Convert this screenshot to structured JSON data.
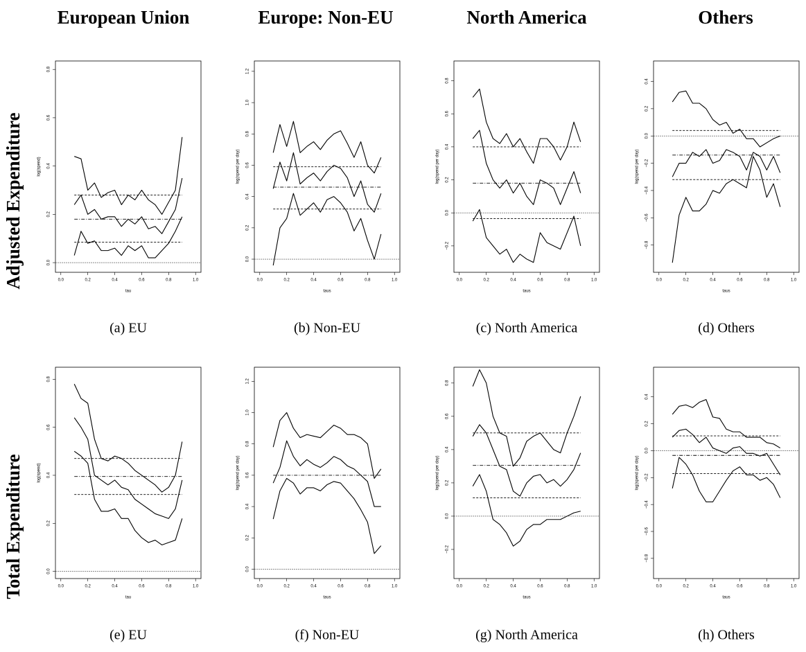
{
  "column_titles": [
    "European Union",
    "Europe: Non-EU",
    "North America",
    "Others"
  ],
  "row_titles": [
    "Adjusted Expenditure",
    "Total Expenditure"
  ],
  "chart_data": [
    {
      "type": "line",
      "caption": "(a) EU",
      "xlabel": "tau",
      "ylabel": "log(spend)",
      "x": [
        0.1,
        0.15,
        0.2,
        0.25,
        0.3,
        0.35,
        0.4,
        0.45,
        0.5,
        0.55,
        0.6,
        0.65,
        0.7,
        0.75,
        0.8,
        0.85,
        0.9
      ],
      "xlim": [
        -0.04,
        1.04
      ],
      "xticks": [
        {
          "value": 0,
          "label": "0.0"
        },
        0.2,
        0.4,
        0.6,
        0.8,
        {
          "value": 1,
          "label": "1.0"
        }
      ],
      "ylim": [
        -0.04,
        0.835
      ],
      "yticks": [
        {
          "value": 0,
          "label": "0.0"
        },
        0.2,
        0.4,
        0.6,
        0.8
      ],
      "zero_line": true,
      "series": [
        {
          "color": "#000",
          "values": [
            0.44,
            0.43,
            0.3,
            0.33,
            0.27,
            0.29,
            0.3,
            0.24,
            0.28,
            0.26,
            0.3,
            0.26,
            0.24,
            0.2,
            0.25,
            0.3,
            0.52
          ]
        },
        {
          "color": "#000",
          "values": [
            0.24,
            0.28,
            0.2,
            0.22,
            0.18,
            0.19,
            0.19,
            0.15,
            0.18,
            0.16,
            0.19,
            0.14,
            0.15,
            0.12,
            0.17,
            0.22,
            0.35
          ]
        },
        {
          "color": "#000",
          "values": [
            0.03,
            0.13,
            0.08,
            0.09,
            0.05,
            0.05,
            0.06,
            0.03,
            0.07,
            0.05,
            0.07,
            0.02,
            0.02,
            0.05,
            0.08,
            0.13,
            0.19
          ]
        }
      ],
      "hlines": [
        {
          "value": 0.28,
          "style": "dashed"
        },
        {
          "value": 0.18,
          "style": "dotdash"
        },
        {
          "value": 0.085,
          "style": "dashed"
        }
      ]
    },
    {
      "type": "line",
      "caption": "(b) Non-EU",
      "xlabel": "taus",
      "ylabel": "log(spend per day)",
      "x": [
        0.1,
        0.15,
        0.2,
        0.25,
        0.3,
        0.35,
        0.4,
        0.45,
        0.5,
        0.55,
        0.6,
        0.65,
        0.7,
        0.75,
        0.8,
        0.85,
        0.9
      ],
      "xlim": [
        -0.04,
        1.04
      ],
      "xticks": [
        {
          "value": 0,
          "label": "0.0"
        },
        0.2,
        0.4,
        0.6,
        0.8,
        {
          "value": 1,
          "label": "1.0"
        }
      ],
      "ylim": [
        -0.084,
        1.266
      ],
      "yticks": [
        {
          "value": 0,
          "label": "0.0"
        },
        0.2,
        0.4,
        0.6,
        0.8,
        {
          "value": 1,
          "label": "1.0"
        },
        1.2
      ],
      "zero_line": true,
      "series": [
        {
          "color": "#000",
          "values": [
            0.68,
            0.86,
            0.72,
            0.88,
            0.68,
            0.72,
            0.75,
            0.7,
            0.76,
            0.8,
            0.82,
            0.74,
            0.65,
            0.75,
            0.6,
            0.55,
            0.65
          ]
        },
        {
          "color": "#000",
          "values": [
            0.45,
            0.62,
            0.5,
            0.68,
            0.48,
            0.52,
            0.55,
            0.5,
            0.56,
            0.6,
            0.58,
            0.52,
            0.4,
            0.5,
            0.35,
            0.3,
            0.42
          ]
        },
        {
          "color": "#000",
          "values": [
            -0.04,
            0.2,
            0.26,
            0.42,
            0.28,
            0.32,
            0.36,
            0.3,
            0.38,
            0.4,
            0.36,
            0.3,
            0.18,
            0.26,
            0.12,
            0.0,
            0.16
          ]
        }
      ],
      "hlines": [
        {
          "value": 0.59,
          "style": "dashed"
        },
        {
          "value": 0.46,
          "style": "dotdash"
        },
        {
          "value": 0.32,
          "style": "dashed"
        }
      ]
    },
    {
      "type": "line",
      "caption": "(c) North America",
      "xlabel": "taus",
      "ylabel": "log(spend per day)",
      "x": [
        0.1,
        0.15,
        0.2,
        0.25,
        0.3,
        0.35,
        0.4,
        0.45,
        0.5,
        0.55,
        0.6,
        0.65,
        0.7,
        0.75,
        0.8,
        0.85,
        0.9
      ],
      "xlim": [
        -0.04,
        1.04
      ],
      "xticks": [
        {
          "value": 0,
          "label": "0.0"
        },
        0.2,
        0.4,
        0.6,
        0.8,
        {
          "value": 1,
          "label": "1.0"
        }
      ],
      "ylim": [
        -0.36,
        0.92
      ],
      "yticks": [
        {
          "value": -0.2,
          "label": "−0.2"
        },
        {
          "value": 0,
          "label": "0.0"
        },
        0.2,
        0.4,
        0.6,
        0.8
      ],
      "zero_line": true,
      "series": [
        {
          "color": "#000",
          "values": [
            0.7,
            0.75,
            0.55,
            0.45,
            0.42,
            0.48,
            0.4,
            0.45,
            0.37,
            0.3,
            0.45,
            0.45,
            0.4,
            0.32,
            0.4,
            0.55,
            0.43
          ]
        },
        {
          "color": "#000",
          "values": [
            0.45,
            0.5,
            0.3,
            0.2,
            0.15,
            0.2,
            0.12,
            0.18,
            0.1,
            0.05,
            0.2,
            0.18,
            0.15,
            0.05,
            0.15,
            0.25,
            0.12
          ]
        },
        {
          "color": "#000",
          "values": [
            -0.05,
            0.02,
            -0.15,
            -0.2,
            -0.25,
            -0.22,
            -0.3,
            -0.25,
            -0.28,
            -0.3,
            -0.12,
            -0.18,
            -0.2,
            -0.22,
            -0.12,
            -0.02,
            -0.2
          ]
        }
      ],
      "hlines": [
        {
          "value": 0.4,
          "style": "dashed"
        },
        {
          "value": 0.18,
          "style": "dotdash"
        },
        {
          "value": -0.035,
          "style": "dashed"
        }
      ]
    },
    {
      "type": "line",
      "caption": "(d) Others",
      "xlabel": "taus",
      "ylabel": "log(spend per day)",
      "x": [
        0.1,
        0.15,
        0.2,
        0.25,
        0.3,
        0.35,
        0.4,
        0.45,
        0.5,
        0.55,
        0.6,
        0.65,
        0.7,
        0.75,
        0.8,
        0.85,
        0.9
      ],
      "xlim": [
        -0.04,
        1.04
      ],
      "xticks": [
        {
          "value": 0,
          "label": "0.0"
        },
        0.2,
        0.4,
        0.6,
        0.8,
        {
          "value": 1,
          "label": "1.0"
        }
      ],
      "ylim": [
        -1.0,
        0.55
      ],
      "yticks": [
        {
          "value": -0.8,
          "label": "−0.8"
        },
        {
          "value": -0.6,
          "label": "−0.6"
        },
        {
          "value": -0.4,
          "label": "−0.4"
        },
        {
          "value": -0.2,
          "label": "−0.2"
        },
        {
          "value": 0,
          "label": "0.0"
        },
        0.2,
        0.4
      ],
      "zero_line": true,
      "series": [
        {
          "color": "#000",
          "values": [
            0.25,
            0.32,
            0.33,
            0.24,
            0.24,
            0.2,
            0.12,
            0.08,
            0.1,
            0.02,
            0.05,
            -0.02,
            -0.02,
            -0.08,
            -0.05,
            -0.02,
            0.0
          ]
        },
        {
          "color": "#000",
          "values": [
            -0.3,
            -0.2,
            -0.2,
            -0.12,
            -0.15,
            -0.1,
            -0.2,
            -0.18,
            -0.1,
            -0.12,
            -0.15,
            -0.25,
            -0.12,
            -0.15,
            -0.25,
            -0.15,
            -0.27
          ]
        },
        {
          "color": "#000",
          "values": [
            -0.93,
            -0.58,
            -0.45,
            -0.55,
            -0.55,
            -0.5,
            -0.4,
            -0.42,
            -0.35,
            -0.32,
            -0.35,
            -0.38,
            -0.15,
            -0.25,
            -0.45,
            -0.35,
            -0.52
          ]
        }
      ],
      "hlines": [
        {
          "value": 0.04,
          "style": "dashed"
        },
        {
          "value": -0.14,
          "style": "dotdash"
        },
        {
          "value": -0.32,
          "style": "dashed"
        }
      ]
    },
    {
      "type": "line",
      "caption": "(e) EU",
      "xlabel": "tau",
      "ylabel": "log(spend)",
      "x": [
        0.1,
        0.15,
        0.2,
        0.25,
        0.3,
        0.35,
        0.4,
        0.45,
        0.5,
        0.55,
        0.6,
        0.65,
        0.7,
        0.75,
        0.8,
        0.85,
        0.9
      ],
      "xlim": [
        -0.04,
        1.04
      ],
      "xticks": [
        {
          "value": 0,
          "label": "0.0"
        },
        0.2,
        0.4,
        0.6,
        0.8,
        {
          "value": 1,
          "label": "1.0"
        }
      ],
      "ylim": [
        -0.03,
        0.85
      ],
      "yticks": [
        {
          "value": 0,
          "label": "0.0"
        },
        0.2,
        0.4,
        0.6,
        0.8
      ],
      "zero_line": true,
      "series": [
        {
          "color": "#000",
          "values": [
            0.78,
            0.72,
            0.7,
            0.55,
            0.47,
            0.46,
            0.48,
            0.47,
            0.45,
            0.42,
            0.4,
            0.38,
            0.36,
            0.33,
            0.35,
            0.4,
            0.54
          ]
        },
        {
          "color": "#000",
          "values": [
            0.64,
            0.6,
            0.55,
            0.4,
            0.38,
            0.36,
            0.38,
            0.35,
            0.34,
            0.3,
            0.28,
            0.26,
            0.24,
            0.23,
            0.22,
            0.26,
            0.38
          ]
        },
        {
          "color": "#000",
          "values": [
            0.5,
            0.48,
            0.45,
            0.3,
            0.25,
            0.25,
            0.26,
            0.22,
            0.22,
            0.17,
            0.14,
            0.12,
            0.13,
            0.11,
            0.12,
            0.13,
            0.22
          ]
        }
      ],
      "hlines": [
        {
          "value": 0.47,
          "style": "dashed"
        },
        {
          "value": 0.395,
          "style": "dotdash"
        },
        {
          "value": 0.32,
          "style": "dashed"
        }
      ]
    },
    {
      "type": "line",
      "caption": "(f) Non-EU",
      "xlabel": "taus",
      "ylabel": "log(spend per day)",
      "x": [
        0.1,
        0.15,
        0.2,
        0.25,
        0.3,
        0.35,
        0.4,
        0.45,
        0.5,
        0.55,
        0.6,
        0.65,
        0.7,
        0.75,
        0.8,
        0.85,
        0.9
      ],
      "xlim": [
        -0.04,
        1.04
      ],
      "xticks": [
        {
          "value": 0,
          "label": "0.0"
        },
        0.2,
        0.4,
        0.6,
        0.8,
        {
          "value": 1,
          "label": "1.0"
        }
      ],
      "ylim": [
        -0.06,
        1.29
      ],
      "yticks": [
        {
          "value": 0,
          "label": "0.0"
        },
        0.2,
        0.4,
        0.6,
        0.8,
        {
          "value": 1,
          "label": "1.0"
        },
        1.2
      ],
      "zero_line": true,
      "series": [
        {
          "color": "#000",
          "values": [
            0.78,
            0.95,
            1.0,
            0.9,
            0.84,
            0.86,
            0.85,
            0.84,
            0.88,
            0.92,
            0.9,
            0.86,
            0.86,
            0.84,
            0.8,
            0.58,
            0.64
          ]
        },
        {
          "color": "#000",
          "values": [
            0.55,
            0.65,
            0.82,
            0.72,
            0.66,
            0.7,
            0.67,
            0.65,
            0.68,
            0.72,
            0.7,
            0.66,
            0.64,
            0.6,
            0.56,
            0.4,
            0.4
          ]
        },
        {
          "color": "#000",
          "values": [
            0.32,
            0.5,
            0.58,
            0.55,
            0.48,
            0.52,
            0.52,
            0.5,
            0.54,
            0.56,
            0.55,
            0.5,
            0.45,
            0.38,
            0.3,
            0.1,
            0.15
          ]
        }
      ],
      "hlines": [
        {
          "value": 0.6,
          "style": "dotdash"
        }
      ]
    },
    {
      "type": "line",
      "caption": "(g) North America",
      "xlabel": "taus",
      "ylabel": "log(spend per day)",
      "x": [
        0.1,
        0.15,
        0.2,
        0.25,
        0.3,
        0.35,
        0.4,
        0.45,
        0.5,
        0.55,
        0.6,
        0.65,
        0.7,
        0.75,
        0.8,
        0.85,
        0.9
      ],
      "xlim": [
        -0.04,
        1.04
      ],
      "xticks": [
        {
          "value": 0,
          "label": "0.0"
        },
        0.2,
        0.4,
        0.6,
        0.8,
        {
          "value": 1,
          "label": "1.0"
        }
      ],
      "ylim": [
        -0.375,
        0.895
      ],
      "yticks": [
        {
          "value": -0.2,
          "label": "−0.2"
        },
        {
          "value": 0,
          "label": "0.0"
        },
        0.2,
        0.4,
        0.6,
        0.8
      ],
      "zero_line": true,
      "series": [
        {
          "color": "#000",
          "values": [
            0.78,
            0.88,
            0.8,
            0.6,
            0.5,
            0.48,
            0.3,
            0.35,
            0.45,
            0.48,
            0.5,
            0.45,
            0.4,
            0.38,
            0.5,
            0.6,
            0.72
          ]
        },
        {
          "color": "#000",
          "values": [
            0.48,
            0.55,
            0.5,
            0.4,
            0.3,
            0.28,
            0.15,
            0.12,
            0.2,
            0.24,
            0.25,
            0.2,
            0.22,
            0.18,
            0.22,
            0.28,
            0.38
          ]
        },
        {
          "color": "#000",
          "values": [
            0.18,
            0.25,
            0.15,
            -0.02,
            -0.05,
            -0.1,
            -0.18,
            -0.15,
            -0.08,
            -0.05,
            -0.05,
            -0.02,
            -0.02,
            -0.02,
            0.0,
            0.02,
            0.03
          ]
        }
      ],
      "hlines": [
        {
          "value": 0.5,
          "style": "dashed"
        },
        {
          "value": 0.305,
          "style": "dotdash"
        },
        {
          "value": 0.11,
          "style": "dashed"
        }
      ]
    },
    {
      "type": "line",
      "caption": "(h) Others",
      "xlabel": "taus",
      "ylabel": "log(spend per day)",
      "x": [
        0.1,
        0.15,
        0.2,
        0.25,
        0.3,
        0.35,
        0.4,
        0.45,
        0.5,
        0.55,
        0.6,
        0.65,
        0.7,
        0.75,
        0.8,
        0.85,
        0.9
      ],
      "xlim": [
        -0.04,
        1.04
      ],
      "xticks": [
        {
          "value": 0,
          "label": "0.0"
        },
        0.2,
        0.4,
        0.6,
        0.8,
        {
          "value": 1,
          "label": "1.0"
        }
      ],
      "ylim": [
        -0.95,
        0.62
      ],
      "yticks": [
        {
          "value": -0.8,
          "label": "−0.8"
        },
        {
          "value": -0.6,
          "label": "−0.6"
        },
        {
          "value": -0.4,
          "label": "−0.4"
        },
        {
          "value": -0.2,
          "label": "−0.2"
        },
        {
          "value": 0,
          "label": "0.0"
        },
        0.2,
        0.4
      ],
      "zero_line": true,
      "series": [
        {
          "color": "#000",
          "values": [
            0.27,
            0.33,
            0.34,
            0.32,
            0.36,
            0.38,
            0.25,
            0.24,
            0.16,
            0.14,
            0.14,
            0.1,
            0.1,
            0.1,
            0.06,
            0.05,
            0.02
          ]
        },
        {
          "color": "#000",
          "values": [
            0.1,
            0.15,
            0.16,
            0.12,
            0.06,
            0.1,
            0.02,
            0.0,
            -0.02,
            0.02,
            0.03,
            -0.02,
            -0.02,
            -0.04,
            -0.02,
            -0.1,
            -0.18
          ]
        },
        {
          "color": "#000",
          "values": [
            -0.28,
            -0.05,
            -0.1,
            -0.18,
            -0.3,
            -0.38,
            -0.38,
            -0.3,
            -0.22,
            -0.15,
            -0.12,
            -0.18,
            -0.18,
            -0.22,
            -0.2,
            -0.25,
            -0.35
          ]
        }
      ],
      "hlines": [
        {
          "value": 0.11,
          "style": "dashed"
        },
        {
          "value": -0.035,
          "style": "dotdash"
        },
        {
          "value": -0.17,
          "style": "dashed"
        }
      ]
    }
  ]
}
